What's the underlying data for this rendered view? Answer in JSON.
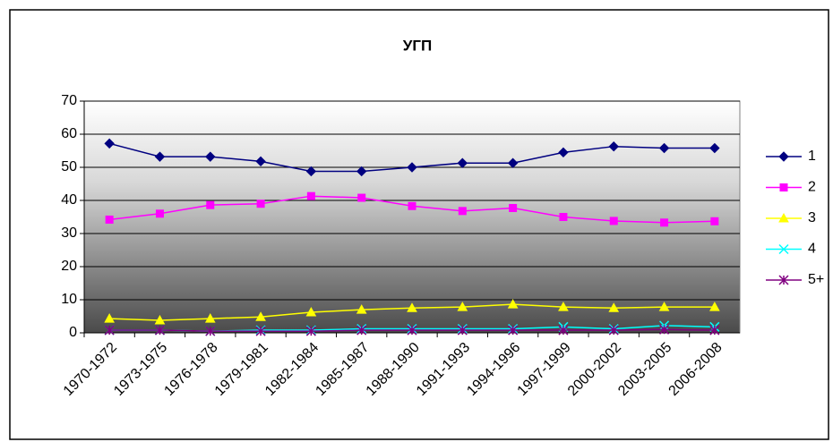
{
  "chart_data": {
    "type": "line",
    "title": "УГП",
    "categories": [
      "1970-1972",
      "1973-1975",
      "1976-1978",
      "1979-1981",
      "1982-1984",
      "1985-1987",
      "1988-1990",
      "1991-1993",
      "1994-1996",
      "1997-1999",
      "2000-2002",
      "2003-2005",
      "2006-2008"
    ],
    "series": [
      {
        "name": "1",
        "color": "#000080",
        "marker": "diamond",
        "values": [
          57.2,
          53.2,
          53.2,
          51.8,
          48.8,
          48.8,
          50,
          51.3,
          51.3,
          54.5,
          56.3,
          55.8,
          55.8
        ]
      },
      {
        "name": "2",
        "color": "#ff00ff",
        "marker": "square",
        "values": [
          34.2,
          36,
          38.6,
          39,
          41.3,
          40.8,
          38.3,
          36.8,
          37.7,
          35,
          33.8,
          33.3,
          33.7
        ]
      },
      {
        "name": "3",
        "color": "#ffff00",
        "marker": "triangle",
        "values": [
          4.3,
          3.8,
          4.3,
          4.8,
          6.2,
          7,
          7.5,
          7.8,
          8.6,
          7.8,
          7.5,
          7.8,
          7.8
        ]
      },
      {
        "name": "4",
        "color": "#00ffff",
        "marker": "x",
        "values": [
          0.8,
          0.8,
          0.5,
          0.8,
          0.8,
          1.2,
          1.2,
          1.2,
          1.2,
          1.8,
          1.2,
          2.2,
          1.8
        ]
      },
      {
        "name": "5+",
        "color": "#800080",
        "marker": "asterisk",
        "values": [
          0.8,
          0.8,
          0.5,
          0.5,
          0.5,
          0.8,
          0.8,
          0.8,
          0.8,
          0.8,
          0.8,
          1.0,
          0.8
        ]
      }
    ],
    "ylim": [
      0,
      70
    ],
    "yticks": [
      0,
      10,
      20,
      30,
      40,
      50,
      60,
      70
    ],
    "grid": true,
    "legend": "right"
  }
}
